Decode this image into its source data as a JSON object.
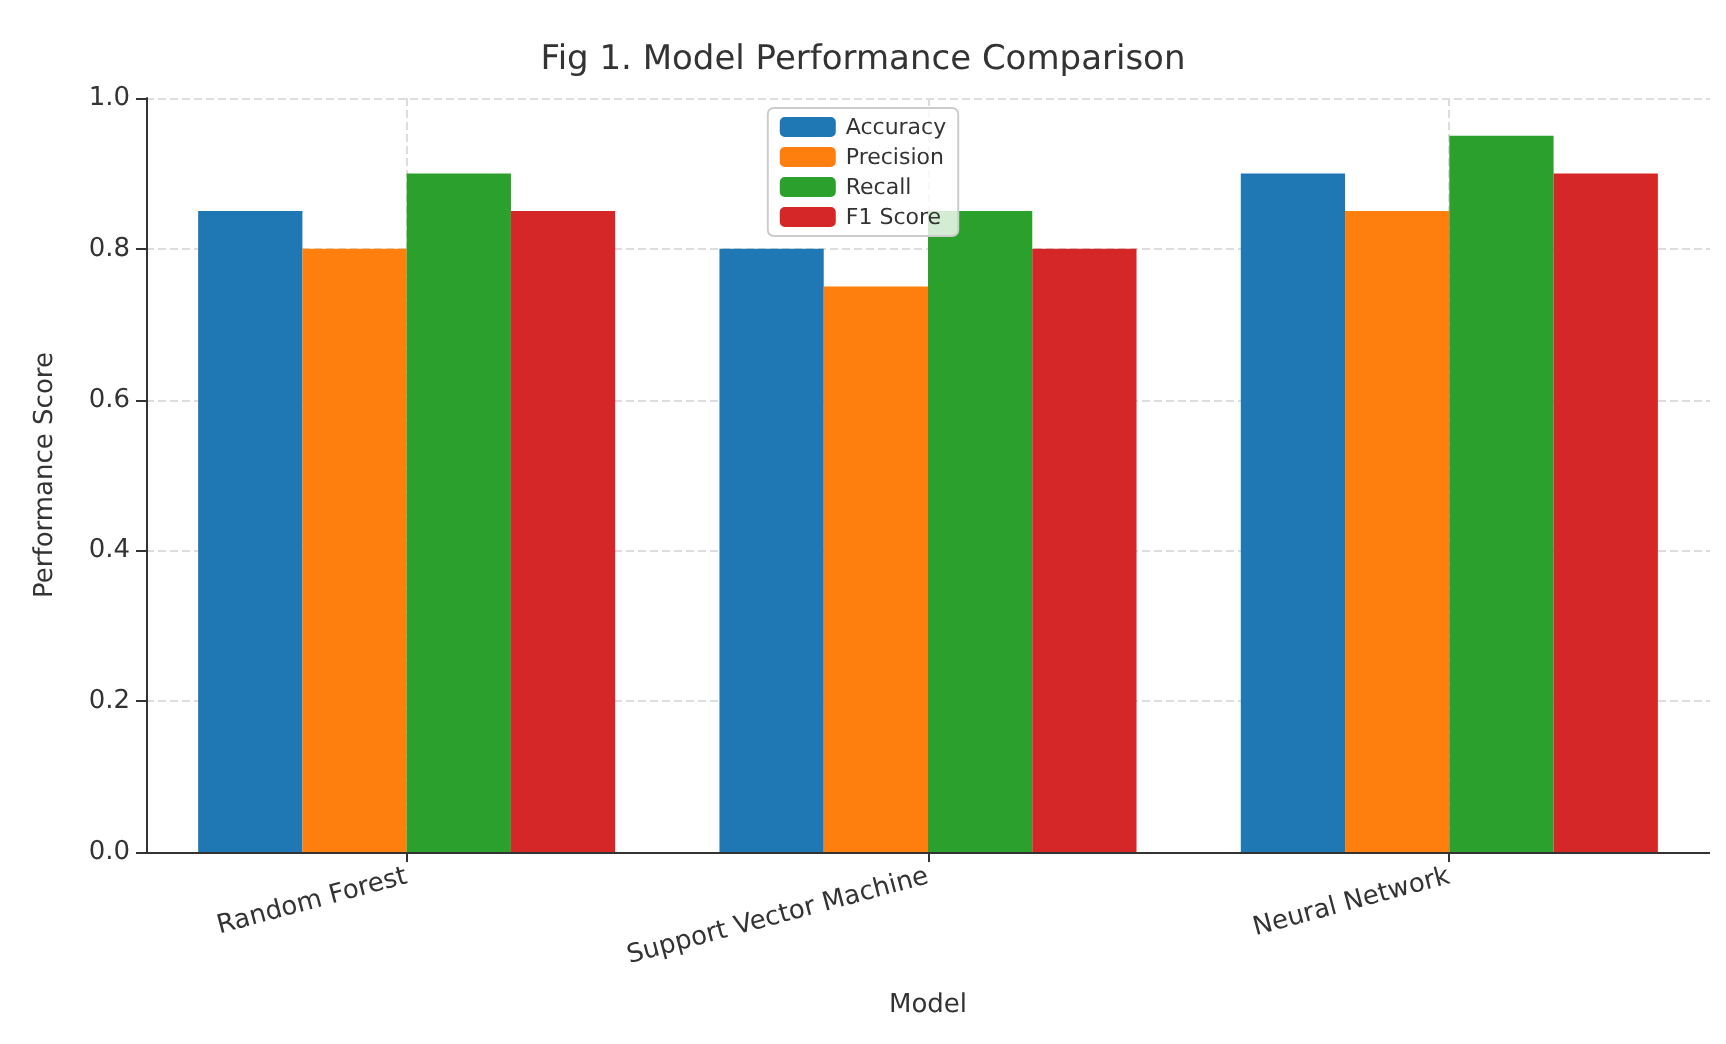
{
  "chart_data": {
    "type": "bar",
    "title": "Fig 1. Model Performance Comparison",
    "xlabel": "Model",
    "ylabel": "Performance Score",
    "categories": [
      "Random Forest",
      "Support Vector Machine",
      "Neural Network"
    ],
    "series": [
      {
        "name": "Accuracy",
        "color": "#1f77b4",
        "values": [
          0.85,
          0.8,
          0.9
        ]
      },
      {
        "name": "Precision",
        "color": "#ff7f0e",
        "values": [
          0.8,
          0.75,
          0.85
        ]
      },
      {
        "name": "Recall",
        "color": "#2ca02c",
        "values": [
          0.9,
          0.85,
          0.95
        ]
      },
      {
        "name": "F1 Score",
        "color": "#d62728",
        "values": [
          0.85,
          0.8,
          0.9
        ]
      }
    ],
    "ylim": [
      0,
      1
    ],
    "yticks": [
      {
        "value": 0,
        "label": "0.0"
      },
      0.2,
      0.4,
      0.6,
      0.8,
      {
        "value": 1,
        "label": "1.0"
      }
    ],
    "grid": true,
    "legend": "top"
  }
}
